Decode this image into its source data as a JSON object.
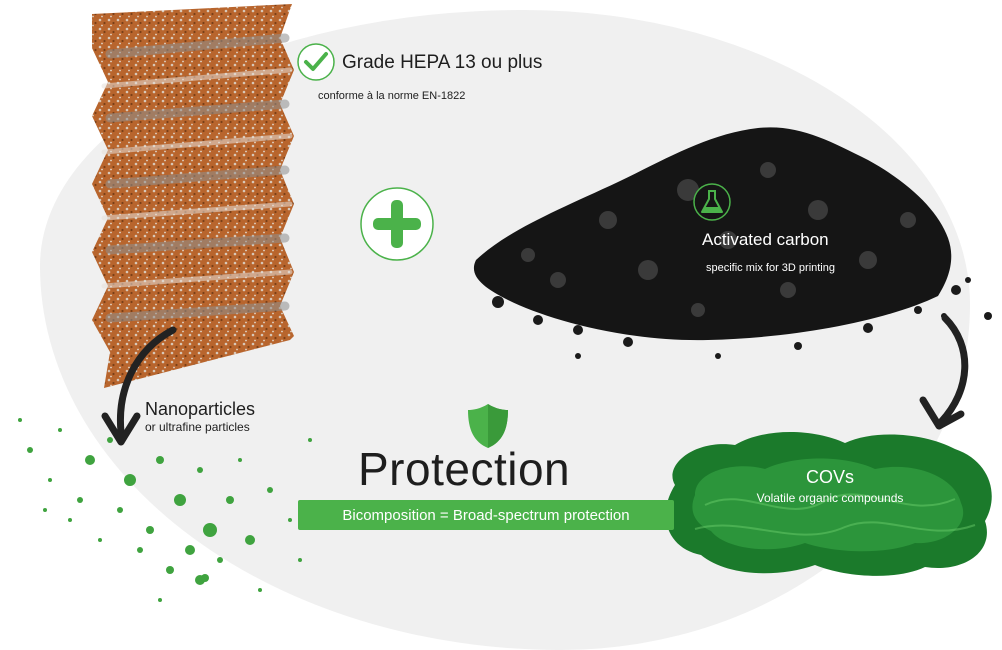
{
  "hepa": {
    "title": "Grade HEPA 13 ou plus",
    "subtitle": "conforme à la norme EN-1822",
    "icon": "check-icon"
  },
  "combine_icon": "plus-icon",
  "carbon": {
    "title": "Activated carbon",
    "subtitle": "specific mix for 3D printing",
    "icon": "flask-icon"
  },
  "nanoparticles": {
    "title": "Nanoparticles",
    "subtitle": "or ultrafine particles"
  },
  "covs": {
    "title": "COVs",
    "subtitle": "Volatile organic compounds"
  },
  "protection": {
    "title": "Protection",
    "banner": "Bicomposition = Broad-spectrum protection",
    "icon": "shield-icon"
  },
  "colors": {
    "accent_green": "#4bb24a",
    "filter_copper": "#b8652d",
    "carbon_black": "#151515",
    "text_dark": "#1e1e1e",
    "background_blob": "#f0f0f0"
  }
}
